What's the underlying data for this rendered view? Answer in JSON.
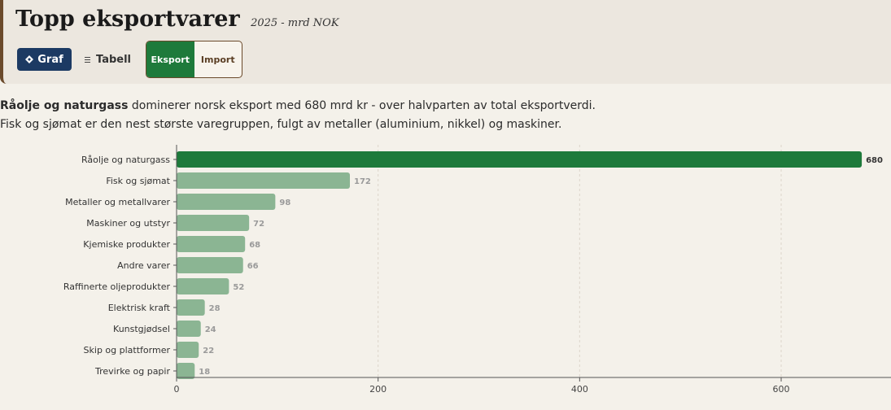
{
  "header": {
    "title": "Topp eksportvarer",
    "subtitle": "2025 - mrd NOK"
  },
  "view_buttons": {
    "graf_label": "Graf",
    "graf_icon": "diamond-icon",
    "tabell_label": "Tabell",
    "tabell_icon": "list-icon"
  },
  "toggle": {
    "eksport_label": "Eksport",
    "import_label": "Import",
    "active": "Eksport"
  },
  "description": {
    "bold": "Råolje og naturgass",
    "text": " dominerer norsk eksport med 680 mrd kr - over halvparten av total eksportverdi. Fisk og sjømat er den nest største varegruppen, fulgt av metaller (aluminium, nikkel) og maskiner."
  },
  "colors": {
    "highlight": "#1e7a3b",
    "bar": "#8bb593",
    "header_bg": "#ece7df",
    "page_bg": "#f4f1ea",
    "graf_button": "#1c3a63"
  },
  "chart_data": {
    "type": "bar",
    "orientation": "horizontal",
    "categories": [
      "Råolje og naturgass",
      "Fisk og sjømat",
      "Metaller og metallvarer",
      "Maskiner og utstyr",
      "Kjemiske produkter",
      "Andre varer",
      "Raffinerte oljeprodukter",
      "Elektrisk kraft",
      "Kunstgjødsel",
      "Skip og plattformer",
      "Trevirke og papir"
    ],
    "values": [
      680,
      172,
      98,
      72,
      68,
      66,
      52,
      28,
      24,
      22,
      18
    ],
    "highlighted": "Råolje og naturgass",
    "xlim": [
      0,
      709
    ],
    "xticks": [
      0,
      200,
      400,
      600
    ],
    "grid": true
  }
}
